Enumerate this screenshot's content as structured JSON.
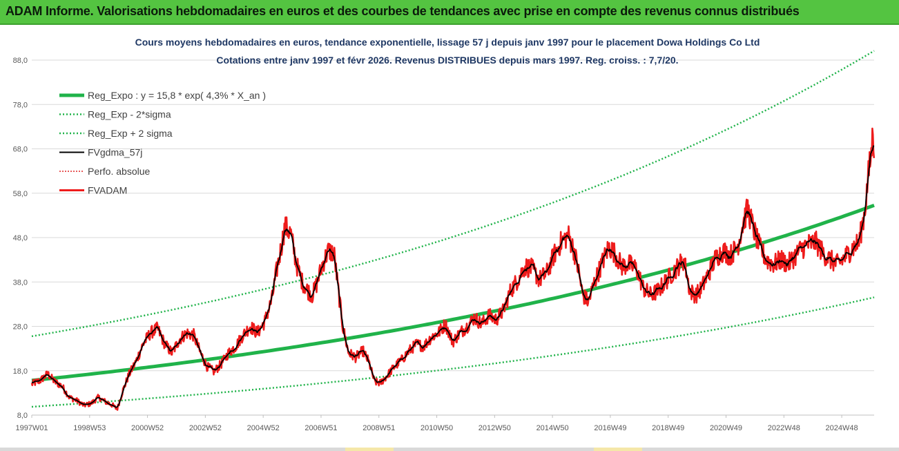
{
  "banner": {
    "title": "ADAM Informe. Valorisations hebdomadaires en euros et des courbes de tendances avec prise en compte des revenus connus distribués"
  },
  "colors": {
    "banner_bg": "#54c441",
    "reg_expo": "#20b34a",
    "sigma": "#20b34a",
    "fvgdma": "#000000",
    "perfo": "#e02020",
    "fvadam": "#ee1c1c"
  },
  "chart_data": {
    "type": "line",
    "title_line1": "Cours moyens hebdomadaires en euros, tendance exponentielle, lissage 57 j depuis janv 1997  pour le placement Dowa Holdings Co Ltd",
    "title_line2": "Cotations entre janv 1997 et févr 2026. Revenus DISTRIBUES  depuis mars 1997. Reg. croiss. : 7,7/20.",
    "ylim": [
      8.0,
      88.0
    ],
    "y_ticks": [
      "8,0",
      "18,0",
      "28,0",
      "38,0",
      "48,0",
      "58,0",
      "68,0",
      "78,0",
      "88,0"
    ],
    "x_range": [
      1997.0,
      2026.12
    ],
    "x_tick_labels": [
      "1997W01",
      "1998W53",
      "2000W52",
      "2002W52",
      "2004W52",
      "2006W51",
      "2008W51",
      "2010W50",
      "2012W50",
      "2014W50",
      "2016W49",
      "2018W49",
      "2020W49",
      "2022W48",
      "2024W48"
    ],
    "x_tick_years": [
      1997.0,
      1999.0,
      2001.0,
      2003.0,
      2005.0,
      2007.0,
      2009.0,
      2011.0,
      2013.0,
      2015.0,
      2017.0,
      2019.0,
      2021.0,
      2023.0,
      2025.0
    ],
    "legend": [
      {
        "key": "reg",
        "label": "Reg_Expo : y = 15,8 * exp( 4,3% *  X_an )"
      },
      {
        "key": "lo",
        "label": "Reg_Exp - 2*sigma"
      },
      {
        "key": "hi",
        "label": "Reg_Exp + 2 sigma"
      },
      {
        "key": "gdma",
        "label": "FVgdma_57j"
      },
      {
        "key": "perfo",
        "label": "Perfo. absolue"
      },
      {
        "key": "adam",
        "label": "FVADAM"
      }
    ],
    "regression": {
      "a": 15.8,
      "b": 0.043,
      "x0": 1997.0,
      "lower_factor": 0.625,
      "upper_factor": 1.63
    },
    "series": [
      {
        "name": "FVADAM",
        "points": [
          [
            1997.0,
            15.0
          ],
          [
            1997.3,
            15.8
          ],
          [
            1997.55,
            17.3
          ],
          [
            1997.8,
            15.5
          ],
          [
            1998.05,
            14.5
          ],
          [
            1998.3,
            12.0
          ],
          [
            1998.55,
            11.3
          ],
          [
            1998.8,
            10.2
          ],
          [
            1999.05,
            10.6
          ],
          [
            1999.3,
            12.0
          ],
          [
            1999.55,
            11.0
          ],
          [
            1999.8,
            10.2
          ],
          [
            1999.95,
            9.3
          ],
          [
            2000.15,
            13.5
          ],
          [
            2000.35,
            17.0
          ],
          [
            2000.6,
            20.0
          ],
          [
            2000.85,
            24.0
          ],
          [
            2001.1,
            26.5
          ],
          [
            2001.35,
            27.5
          ],
          [
            2001.6,
            24.0
          ],
          [
            2001.85,
            22.0
          ],
          [
            2002.1,
            25.0
          ],
          [
            2002.35,
            26.5
          ],
          [
            2002.6,
            26.0
          ],
          [
            2002.8,
            22.5
          ],
          [
            2003.05,
            19.0
          ],
          [
            2003.3,
            17.8
          ],
          [
            2003.55,
            19.5
          ],
          [
            2003.8,
            22.0
          ],
          [
            2004.05,
            23.5
          ],
          [
            2004.3,
            26.0
          ],
          [
            2004.55,
            28.0
          ],
          [
            2004.8,
            26.5
          ],
          [
            2005.05,
            29.0
          ],
          [
            2005.3,
            34.0
          ],
          [
            2005.45,
            40.0
          ],
          [
            2005.6,
            45.0
          ],
          [
            2005.75,
            50.5
          ],
          [
            2005.95,
            49.0
          ],
          [
            2006.15,
            42.0
          ],
          [
            2006.35,
            38.0
          ],
          [
            2006.55,
            36.0
          ],
          [
            2006.7,
            35.0
          ],
          [
            2006.85,
            37.5
          ],
          [
            2007.05,
            42.0
          ],
          [
            2007.25,
            45.0
          ],
          [
            2007.45,
            44.5
          ],
          [
            2007.6,
            36.0
          ],
          [
            2007.75,
            28.0
          ],
          [
            2007.95,
            22.0
          ],
          [
            2008.2,
            21.0
          ],
          [
            2008.45,
            22.5
          ],
          [
            2008.65,
            20.0
          ],
          [
            2008.85,
            15.5
          ],
          [
            2009.05,
            15.2
          ],
          [
            2009.3,
            17.0
          ],
          [
            2009.55,
            19.0
          ],
          [
            2009.8,
            20.5
          ],
          [
            2010.05,
            22.5
          ],
          [
            2010.3,
            24.0
          ],
          [
            2010.55,
            23.5
          ],
          [
            2010.8,
            25.5
          ],
          [
            2011.05,
            26.5
          ],
          [
            2011.3,
            28.5
          ],
          [
            2011.55,
            24.5
          ],
          [
            2011.8,
            26.5
          ],
          [
            2012.05,
            28.0
          ],
          [
            2012.3,
            30.0
          ],
          [
            2012.55,
            28.5
          ],
          [
            2012.8,
            30.5
          ],
          [
            2013.05,
            29.5
          ],
          [
            2013.3,
            31.5
          ],
          [
            2013.55,
            36.0
          ],
          [
            2013.8,
            38.5
          ],
          [
            2014.05,
            41.5
          ],
          [
            2014.3,
            41.0
          ],
          [
            2014.55,
            38.5
          ],
          [
            2014.8,
            40.0
          ],
          [
            2015.05,
            44.0
          ],
          [
            2015.3,
            47.0
          ],
          [
            2015.55,
            48.5
          ],
          [
            2015.75,
            45.0
          ],
          [
            2015.9,
            40.5
          ],
          [
            2016.05,
            35.0
          ],
          [
            2016.25,
            33.5
          ],
          [
            2016.45,
            38.0
          ],
          [
            2016.7,
            42.0
          ],
          [
            2016.95,
            46.0
          ],
          [
            2017.15,
            44.5
          ],
          [
            2017.4,
            41.5
          ],
          [
            2017.65,
            42.0
          ],
          [
            2017.9,
            41.0
          ],
          [
            2018.15,
            36.5
          ],
          [
            2018.4,
            35.0
          ],
          [
            2018.65,
            36.0
          ],
          [
            2018.9,
            38.0
          ],
          [
            2019.15,
            40.0
          ],
          [
            2019.4,
            42.0
          ],
          [
            2019.55,
            43.0
          ],
          [
            2019.75,
            36.0
          ],
          [
            2019.95,
            35.0
          ],
          [
            2020.15,
            36.5
          ],
          [
            2020.4,
            40.0
          ],
          [
            2020.65,
            43.5
          ],
          [
            2020.9,
            45.0
          ],
          [
            2021.15,
            44.0
          ],
          [
            2021.4,
            46.0
          ],
          [
            2021.6,
            51.5
          ],
          [
            2021.75,
            54.5
          ],
          [
            2021.95,
            50.0
          ],
          [
            2022.15,
            46.0
          ],
          [
            2022.4,
            43.0
          ],
          [
            2022.65,
            42.0
          ],
          [
            2022.9,
            43.0
          ],
          [
            2023.15,
            42.0
          ],
          [
            2023.4,
            44.0
          ],
          [
            2023.6,
            45.5
          ],
          [
            2023.85,
            46.5
          ],
          [
            2024.1,
            47.0
          ],
          [
            2024.35,
            44.5
          ],
          [
            2024.6,
            43.0
          ],
          [
            2024.85,
            42.0
          ],
          [
            2025.1,
            43.5
          ],
          [
            2025.35,
            45.5
          ],
          [
            2025.6,
            47.0
          ],
          [
            2025.8,
            54.0
          ],
          [
            2025.92,
            62.0
          ],
          [
            2026.02,
            67.0
          ],
          [
            2026.08,
            72.0
          ],
          [
            2026.12,
            68.0
          ]
        ]
      }
    ]
  }
}
